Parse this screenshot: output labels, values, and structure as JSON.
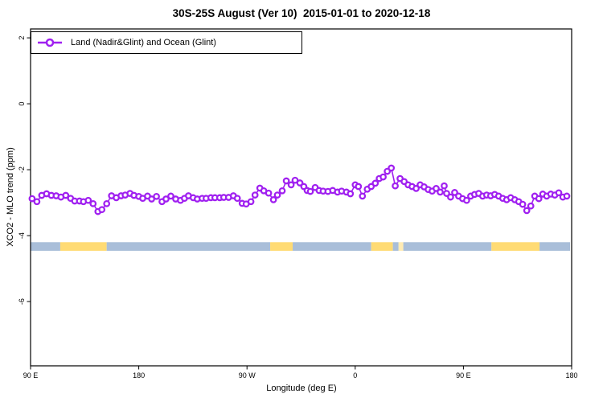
{
  "title": "30S-25S August (Ver 10)  2015-01-01 to 2020-12-18",
  "legend": {
    "label": "Land (Nadir&Glint) and Ocean (Glint)"
  },
  "colors": {
    "series": "#A020F0",
    "marker_fill": "#FFFFFF",
    "land": "#FFDB74",
    "ocean": "#A9BED9",
    "axis": "#000000",
    "background": "#FFFFFF"
  },
  "chart_data": {
    "type": "line",
    "title": "30S-25S August (Ver 10)  2015-01-01 to 2020-12-18",
    "xlabel": "Longitude (deg E)",
    "ylabel": "XCO2 - MLO trend (ppm)",
    "xlim": [
      90,
      540
    ],
    "ylim": [
      -7.95,
      2.27
    ],
    "grid": false,
    "legend_position": "top-left",
    "marker": "open-circle",
    "yticks": [
      2,
      0,
      -2,
      -4,
      -6
    ],
    "xticks": [
      {
        "lon": 90,
        "label": "90 E"
      },
      {
        "lon": 180,
        "label": "180"
      },
      {
        "lon": 270,
        "label": "90 W"
      },
      {
        "lon": 360,
        "label": "0"
      },
      {
        "lon": 450,
        "label": "90 E"
      },
      {
        "lon": 540,
        "label": "180"
      }
    ],
    "series": [
      {
        "name": "Land (Nadir&Glint) and Ocean (Glint)",
        "x": [
          91.3,
          95.3,
          99.3,
          103.3,
          107.3,
          111.3,
          115.3,
          119.3,
          123.3,
          126.7,
          130.7,
          134.0,
          138.0,
          142.0,
          146.0,
          149.3,
          153.3,
          157.3,
          161.3,
          165.3,
          168.7,
          172.7,
          176.0,
          180.0,
          183.3,
          187.3,
          190.7,
          194.7,
          199.3,
          202.7,
          206.7,
          210.7,
          214.7,
          218.0,
          221.3,
          225.3,
          228.7,
          232.7,
          236.0,
          240.0,
          243.3,
          247.3,
          250.7,
          254.7,
          258.7,
          262.0,
          266.0,
          269.3,
          273.3,
          276.7,
          280.7,
          284.0,
          288.0,
          292.0,
          295.3,
          299.3,
          302.7,
          306.7,
          310.0,
          314.0,
          317.3,
          320.0,
          322.7,
          326.7,
          330.0,
          333.3,
          337.3,
          341.3,
          345.3,
          348.7,
          352.7,
          356.0,
          360.0,
          362.7,
          366.0,
          370.0,
          373.3,
          376.7,
          380.0,
          383.3,
          386.7,
          390.0,
          393.3,
          397.3,
          400.7,
          404.0,
          407.3,
          410.7,
          414.0,
          417.3,
          420.7,
          424.0,
          427.3,
          430.7,
          434.0,
          436.0,
          439.3,
          442.7,
          446.0,
          449.3,
          452.7,
          456.0,
          459.3,
          462.7,
          466.0,
          469.3,
          472.7,
          476.0,
          479.3,
          482.7,
          486.0,
          489.3,
          492.7,
          496.0,
          499.3,
          502.7,
          506.0,
          509.3,
          512.7,
          516.0,
          519.3,
          522.7,
          526.0,
          529.3,
          532.7,
          536.0
        ],
        "y": [
          -2.88,
          -2.97,
          -2.78,
          -2.73,
          -2.78,
          -2.79,
          -2.83,
          -2.78,
          -2.87,
          -2.95,
          -2.95,
          -2.97,
          -2.93,
          -3.03,
          -3.27,
          -3.21,
          -3.03,
          -2.79,
          -2.85,
          -2.79,
          -2.77,
          -2.72,
          -2.78,
          -2.81,
          -2.87,
          -2.8,
          -2.89,
          -2.81,
          -2.97,
          -2.89,
          -2.8,
          -2.89,
          -2.93,
          -2.87,
          -2.79,
          -2.85,
          -2.89,
          -2.87,
          -2.87,
          -2.85,
          -2.85,
          -2.85,
          -2.84,
          -2.84,
          -2.79,
          -2.87,
          -3.02,
          -3.04,
          -2.97,
          -2.77,
          -2.56,
          -2.64,
          -2.71,
          -2.91,
          -2.77,
          -2.64,
          -2.34,
          -2.46,
          -2.32,
          -2.4,
          -2.51,
          -2.63,
          -2.66,
          -2.54,
          -2.63,
          -2.65,
          -2.66,
          -2.63,
          -2.68,
          -2.65,
          -2.68,
          -2.73,
          -2.46,
          -2.51,
          -2.8,
          -2.59,
          -2.51,
          -2.41,
          -2.27,
          -2.22,
          -2.05,
          -1.95,
          -2.49,
          -2.27,
          -2.36,
          -2.46,
          -2.51,
          -2.57,
          -2.46,
          -2.52,
          -2.6,
          -2.65,
          -2.57,
          -2.68,
          -2.49,
          -2.72,
          -2.83,
          -2.69,
          -2.8,
          -2.88,
          -2.93,
          -2.8,
          -2.75,
          -2.72,
          -2.8,
          -2.77,
          -2.79,
          -2.75,
          -2.8,
          -2.87,
          -2.91,
          -2.85,
          -2.91,
          -2.97,
          -3.05,
          -3.24,
          -3.1,
          -2.8,
          -2.88,
          -2.74,
          -2.8,
          -2.74,
          -2.77,
          -2.7,
          -2.83,
          -2.8
        ]
      }
    ],
    "surface_band": {
      "top": -4.2,
      "bottom": -4.46,
      "segments": [
        {
          "surface": "ocean",
          "from": 90.0,
          "to": 114.7
        },
        {
          "surface": "land",
          "from": 114.7,
          "to": 153.3
        },
        {
          "surface": "ocean",
          "from": 153.3,
          "to": 289.3
        },
        {
          "surface": "land",
          "from": 289.3,
          "to": 308.0
        },
        {
          "surface": "ocean",
          "from": 308.0,
          "to": 373.3
        },
        {
          "surface": "land",
          "from": 373.3,
          "to": 391.3
        },
        {
          "surface": "ocean",
          "from": 391.3,
          "to": 396.0
        },
        {
          "surface": "land",
          "from": 396.0,
          "to": 400.0,
          "faint": true
        },
        {
          "surface": "ocean",
          "from": 400.0,
          "to": 473.3
        },
        {
          "surface": "land",
          "from": 473.3,
          "to": 513.3
        },
        {
          "surface": "ocean",
          "from": 513.3,
          "to": 538.7
        }
      ]
    }
  }
}
